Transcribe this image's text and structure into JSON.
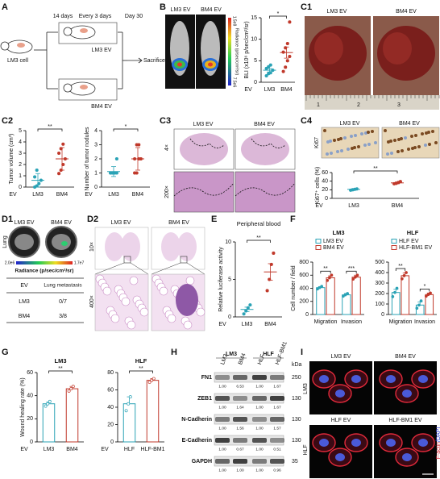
{
  "panels": {
    "A": {
      "letter": "A",
      "labels": [
        "14 days",
        "Every 3 days",
        "Day 30"
      ],
      "cell": "LM3 cell",
      "groups": [
        "LM3 EV",
        "BM4 EV"
      ],
      "end": "Sacrifice"
    },
    "B": {
      "letter": "B",
      "groups": [
        "LM3 EV",
        "BM4 EV"
      ],
      "scale_max": "1.5e8",
      "scale_min": "7.5e6",
      "scale_label": "Radiance (p/sec/cm²/sr)"
    },
    "C1": {
      "letter": "C1",
      "groups": [
        "LM3 EV",
        "BM4 EV"
      ],
      "ruler": [
        "1",
        "2",
        "3"
      ]
    },
    "C2": {
      "letter": "C2"
    },
    "C3": {
      "letter": "C3",
      "groups": [
        "LM3 EV",
        "BM4 EV"
      ],
      "magnifications": [
        "4×",
        "200×"
      ]
    },
    "C4": {
      "letter": "C4",
      "groups": [
        "LM3 EV",
        "BM4 EV"
      ],
      "stain": "Ki67"
    },
    "D1": {
      "letter": "D1",
      "groups": [
        "LM3 EV",
        "BM4 EV"
      ],
      "organ": "Lung",
      "scale_min": "2.0e6",
      "scale_max": "1.7e7",
      "scale_label": "Radiance (p/sec/cm²/sr)",
      "table": {
        "header": [
          "EV",
          "Lung metastasis"
        ],
        "rows": [
          [
            "LM3",
            "0/7"
          ],
          [
            "BM4",
            "3/8"
          ]
        ]
      }
    },
    "D2": {
      "letter": "D2",
      "groups": [
        "LM3 EV",
        "BM4 EV"
      ],
      "magnifications": [
        "10×",
        "400×"
      ]
    },
    "E": {
      "letter": "E"
    },
    "F": {
      "letter": "F"
    },
    "G": {
      "letter": "G"
    },
    "H": {
      "letter": "H",
      "groups": [
        "LM3",
        "HLF"
      ],
      "lanes": [
        "LM3",
        "BM4",
        "HLF",
        "HLF-BM1"
      ],
      "unit": "kDa",
      "proteins": [
        {
          "name": "FN1",
          "kda": "250",
          "ratios": [
            "1.00",
            "6.53",
            "1.00",
            "1.67"
          ]
        },
        {
          "name": "ZEB1",
          "kda": "130",
          "ratios": [
            "1.00",
            "1.64",
            "1.00",
            "1.67"
          ]
        },
        {
          "name": "N-Cadherin",
          "kda": "130",
          "ratios": [
            "1.00",
            "1.56",
            "1.00",
            "1.57"
          ]
        },
        {
          "name": "E-Cadherin",
          "kda": "130",
          "ratios": [
            "1.00",
            "0.67",
            "1.00",
            "0.51"
          ]
        },
        {
          "name": "GAPDH",
          "kda": "35",
          "ratios": [
            "1.00",
            "1.00",
            "1.00",
            "0.96"
          ]
        }
      ]
    },
    "I": {
      "letter": "I",
      "columns_top": [
        "LM3 EV",
        "BM4 EV"
      ],
      "columns_bottom": [
        "HLF EV",
        "HLF-BM1 EV"
      ],
      "rows": [
        "LM3",
        "HLF"
      ],
      "stain_red": "F-actin",
      "stain_blue": "/DAPI"
    }
  },
  "chart_data": [
    {
      "type": "scatter",
      "ylabel": "BLI (x10⁶ p/sec/cm²/sr)",
      "xlabel": "EV",
      "categories": [
        "LM3",
        "BM4"
      ],
      "colors": [
        "#2ba3b6",
        "#c0392b"
      ],
      "points": [
        [
          1.5,
          2.0,
          2.2,
          2.8,
          3.2,
          3.6,
          4.0
        ],
        [
          2.5,
          3.5,
          5,
          6,
          7,
          8,
          9,
          14
        ]
      ],
      "means": [
        2.8,
        6.9
      ],
      "errors": [
        0.4,
        1.3
      ],
      "ylim": [
        0,
        15
      ],
      "yticks": [
        0,
        5,
        10,
        15
      ],
      "significance": "*"
    },
    {
      "type": "scatter",
      "ylabel": "Tumor volume (cm³)",
      "xlabel": "EV",
      "categories": [
        "LM3",
        "BM4"
      ],
      "colors": [
        "#2ba3b6",
        "#c0392b"
      ],
      "points": [
        [
          0,
          0.1,
          0.3,
          0.6,
          0.9,
          1.5
        ],
        [
          1.2,
          1.5,
          2.0,
          2.5,
          3.0,
          3.4,
          3.8
        ]
      ],
      "means": [
        0.6,
        2.5
      ],
      "errors": [
        0.6,
        1.0
      ],
      "ylim": [
        0,
        5
      ],
      "yticks": [
        0,
        1,
        2,
        3,
        4,
        5
      ],
      "significance": "**"
    },
    {
      "type": "scatter",
      "ylabel": "Number of tumor nodules",
      "xlabel": "EV",
      "categories": [
        "LM3",
        "BM4"
      ],
      "colors": [
        "#2ba3b6",
        "#c0392b"
      ],
      "points": [
        [
          1,
          1,
          1,
          1,
          1,
          1,
          1,
          2
        ],
        [
          1,
          1,
          2,
          2,
          2,
          3,
          3
        ]
      ],
      "means": [
        1.1,
        2.0
      ],
      "errors": [
        0.35,
        0.8
      ],
      "ylim": [
        0,
        4
      ],
      "yticks": [
        0,
        1,
        2,
        3,
        4
      ],
      "significance": "*"
    },
    {
      "type": "scatter",
      "ylabel": "Ki67⁺ cells (%)",
      "xlabel": "EV",
      "categories": [
        "LM3",
        "BM4"
      ],
      "colors": [
        "#2ba3b6",
        "#c0392b"
      ],
      "points": [
        [
          19,
          20,
          21,
          22
        ],
        [
          34,
          35,
          37,
          39
        ]
      ],
      "means": [
        21,
        36
      ],
      "errors": [
        1.5,
        2
      ],
      "ylim": [
        0,
        60
      ],
      "yticks": [
        0,
        20,
        40,
        60
      ],
      "significance": "**"
    },
    {
      "type": "scatter",
      "title": "Peripheral blood",
      "ylabel": "Relative luciferase activity",
      "xlabel": "EV",
      "categories": [
        "LM3",
        "BM4"
      ],
      "colors": [
        "#2ba3b6",
        "#c0392b"
      ],
      "points": [
        [
          0.4,
          0.8,
          1.2,
          1.6
        ],
        [
          3.5,
          5,
          7,
          8.5
        ]
      ],
      "means": [
        1.0,
        6.0
      ],
      "errors": [
        0.3,
        1.1
      ],
      "ylim": [
        0,
        10
      ],
      "yticks": [
        0,
        5,
        10
      ],
      "significance": "**"
    },
    {
      "type": "bar",
      "subtitle": "LM3",
      "ylabel": "Cell number / field",
      "categories": [
        "Migration",
        "Invasion"
      ],
      "series": [
        {
          "name": "LM3 EV",
          "color": "#2ba3b6",
          "values": [
            410,
            300
          ],
          "errors": [
            15,
            20
          ],
          "points": [
            [
              390,
              410,
              430
            ],
            [
              280,
              300,
              320
            ]
          ]
        },
        {
          "name": "BM4 EV",
          "color": "#c0392b",
          "values": [
            560,
            570
          ],
          "errors": [
            30,
            30
          ],
          "points": [
            [
              520,
              560,
              600
            ],
            [
              540,
              570,
              600
            ]
          ]
        }
      ],
      "ylim": [
        0,
        800
      ],
      "yticks": [
        0,
        200,
        400,
        600,
        800
      ],
      "significance": [
        "**",
        "***"
      ]
    },
    {
      "type": "bar",
      "subtitle": "HLF",
      "categories": [
        "Migration",
        "Invasion"
      ],
      "series": [
        {
          "name": "HLF EV",
          "color": "#2ba3b6",
          "values": [
            210,
            90
          ],
          "errors": [
            30,
            30
          ],
          "points": [
            [
              170,
              210,
              250
            ],
            [
              60,
              90,
              130
            ]
          ]
        },
        {
          "name": "HLF-BM1 EV",
          "color": "#c0392b",
          "values": [
            370,
            190
          ],
          "errors": [
            25,
            15
          ],
          "points": [
            [
              340,
              370,
              400
            ],
            [
              175,
              190,
              205
            ]
          ]
        }
      ],
      "ylim": [
        0,
        500
      ],
      "yticks": [
        0,
        100,
        200,
        300,
        400,
        500
      ],
      "significance": [
        "**",
        "*"
      ]
    },
    {
      "type": "bar",
      "subtitle": "LM3",
      "ylabel": "Wound healing rate (%)",
      "xlabel": "EV",
      "categories": [
        "LM3",
        "BM4"
      ],
      "colors": [
        "#2ba3b6",
        "#c0392b"
      ],
      "values": [
        33,
        46
      ],
      "errors": [
        1.5,
        2
      ],
      "points": [
        [
          31,
          33,
          35
        ],
        [
          44,
          46,
          48
        ]
      ],
      "ylim": [
        0,
        60
      ],
      "yticks": [
        0,
        20,
        40,
        60
      ],
      "significance": "**"
    },
    {
      "type": "bar",
      "subtitle": "HLF",
      "xlabel": "EV",
      "categories": [
        "HLF",
        "HLF-BM1"
      ],
      "colors": [
        "#2ba3b6",
        "#c0392b"
      ],
      "values": [
        44,
        71
      ],
      "errors": [
        8,
        2
      ],
      "points": [
        [
          36,
          44,
          52
        ],
        [
          69,
          71,
          73
        ]
      ],
      "ylim": [
        0,
        80
      ],
      "yticks": [
        0,
        20,
        40,
        60,
        80
      ],
      "significance": "**"
    }
  ]
}
